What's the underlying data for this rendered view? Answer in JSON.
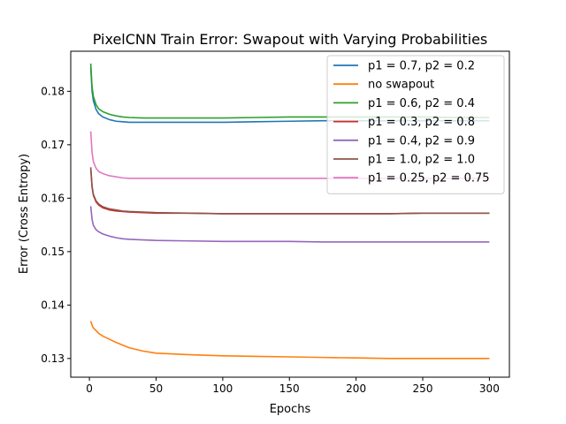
{
  "chart_data": {
    "type": "line",
    "title": "PixelCNN Train Error: Swapout with Varying Probabilities",
    "xlabel": "Epochs",
    "ylabel": "Error (Cross Entropy)",
    "xlim": [
      -14,
      315
    ],
    "ylim": [
      0.1265,
      0.1875
    ],
    "xticks": [
      0,
      50,
      100,
      150,
      200,
      250,
      300
    ],
    "yticks": [
      0.13,
      0.14,
      0.15,
      0.16,
      0.17,
      0.18
    ],
    "ytick_labels": [
      "0.13",
      "0.14",
      "0.15",
      "0.16",
      "0.17",
      "0.18"
    ],
    "grid": false,
    "legend": "upper right",
    "series": [
      {
        "name": "p1 = 0.7, p2 = 0.2",
        "color": "#1f77b4",
        "x": [
          1,
          2,
          3,
          5,
          7,
          10,
          15,
          20,
          25,
          30,
          40,
          50,
          75,
          100,
          125,
          150,
          175,
          200,
          225,
          250,
          275,
          300
        ],
        "y": [
          0.1845,
          0.18,
          0.1782,
          0.1766,
          0.1758,
          0.1752,
          0.1747,
          0.1744,
          0.1743,
          0.1742,
          0.1742,
          0.1742,
          0.1742,
          0.1742,
          0.1743,
          0.1744,
          0.1745,
          0.1745,
          0.1745,
          0.1745,
          0.1745,
          0.1745
        ]
      },
      {
        "name": "no swapout",
        "color": "#ff7f0e",
        "x": [
          1,
          2,
          3,
          5,
          7,
          10,
          15,
          20,
          25,
          30,
          40,
          50,
          75,
          100,
          125,
          150,
          175,
          200,
          225,
          250,
          275,
          300
        ],
        "y": [
          0.137,
          0.1362,
          0.1357,
          0.1352,
          0.1347,
          0.1342,
          0.1336,
          0.133,
          0.1325,
          0.132,
          0.1314,
          0.131,
          0.1307,
          0.1305,
          0.1304,
          0.1303,
          0.1302,
          0.1301,
          0.13,
          0.13,
          0.13,
          0.13
        ]
      },
      {
        "name": "p1 = 0.6, p2 = 0.4",
        "color": "#2ca02c",
        "x": [
          1,
          2,
          3,
          5,
          7,
          10,
          15,
          20,
          25,
          30,
          40,
          50,
          75,
          100,
          125,
          150,
          175,
          200,
          225,
          250,
          275,
          300
        ],
        "y": [
          0.1852,
          0.1808,
          0.179,
          0.1775,
          0.1767,
          0.1762,
          0.1757,
          0.1754,
          0.1752,
          0.1751,
          0.175,
          0.175,
          0.175,
          0.175,
          0.1751,
          0.1752,
          0.1752,
          0.1752,
          0.1752,
          0.1752,
          0.1751,
          0.1751
        ]
      },
      {
        "name": "p1 = 0.3, p2 = 0.8",
        "color": "#d62728",
        "x": [
          1,
          2,
          3,
          5,
          7,
          10,
          15,
          20,
          25,
          30,
          40,
          50,
          75,
          100,
          125,
          150,
          175,
          200,
          225,
          250,
          275,
          300
        ],
        "y": [
          0.1655,
          0.162,
          0.1605,
          0.1593,
          0.1587,
          0.1582,
          0.1578,
          0.1576,
          0.1575,
          0.1574,
          0.1573,
          0.1572,
          0.1572,
          0.1571,
          0.1571,
          0.1571,
          0.1571,
          0.1571,
          0.1571,
          0.1572,
          0.1572,
          0.1572
        ]
      },
      {
        "name": "p1 = 0.4, p2 = 0.9",
        "color": "#9467bd",
        "x": [
          1,
          2,
          3,
          5,
          7,
          10,
          15,
          20,
          25,
          30,
          40,
          50,
          75,
          100,
          125,
          150,
          175,
          200,
          225,
          250,
          275,
          300
        ],
        "y": [
          0.1585,
          0.156,
          0.1549,
          0.1541,
          0.1537,
          0.1533,
          0.1529,
          0.1526,
          0.1524,
          0.1523,
          0.1522,
          0.1521,
          0.152,
          0.1519,
          0.1519,
          0.1519,
          0.1518,
          0.1518,
          0.1518,
          0.1518,
          0.1518,
          0.1518
        ]
      },
      {
        "name": "p1 = 1.0, p2 = 1.0",
        "color": "#8c564b",
        "x": [
          1,
          2,
          3,
          5,
          7,
          10,
          15,
          20,
          25,
          30,
          40,
          50,
          75,
          100,
          125,
          150,
          175,
          200,
          225,
          250,
          275,
          300
        ],
        "y": [
          0.1658,
          0.1622,
          0.1607,
          0.1595,
          0.1589,
          0.1584,
          0.158,
          0.1578,
          0.1576,
          0.1575,
          0.1574,
          0.1573,
          0.1572,
          0.1571,
          0.1571,
          0.1571,
          0.1571,
          0.1571,
          0.1571,
          0.1572,
          0.1572,
          0.1572
        ]
      },
      {
        "name": "p1 = 0.25, p2 = 0.75",
        "color": "#e377c2",
        "x": [
          1,
          2,
          3,
          5,
          7,
          10,
          15,
          20,
          25,
          30,
          40,
          50,
          75,
          100,
          125,
          150,
          175,
          200,
          225,
          250,
          275,
          300
        ],
        "y": [
          0.1725,
          0.1685,
          0.1668,
          0.1656,
          0.165,
          0.1646,
          0.1642,
          0.164,
          0.1638,
          0.1637,
          0.1637,
          0.1637,
          0.1637,
          0.1637,
          0.1637,
          0.1637,
          0.1637,
          0.1637,
          0.1637,
          0.1637,
          0.1637,
          0.1637
        ]
      }
    ]
  }
}
